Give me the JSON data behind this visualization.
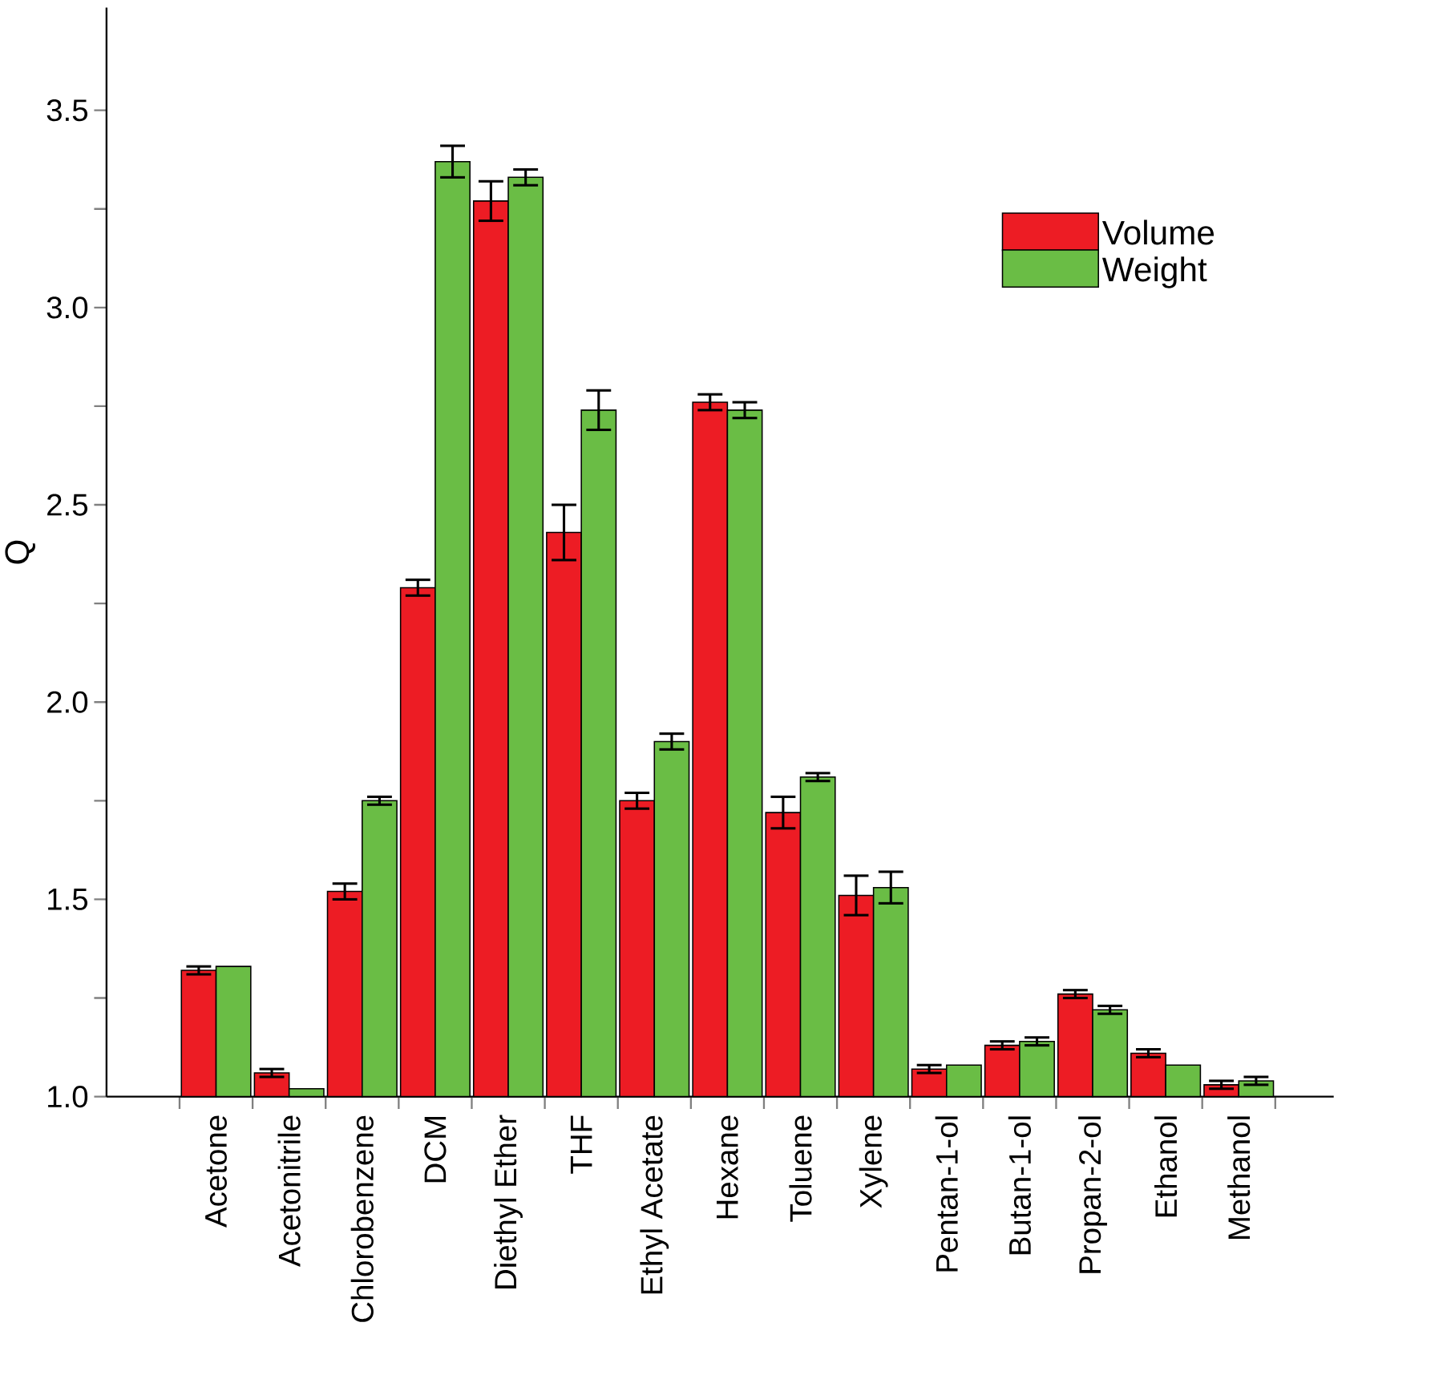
{
  "chart_data": {
    "type": "bar",
    "ylabel": "Q",
    "categories": [
      "Acetone",
      "Acetonitrile",
      "Chlorobenzene",
      "DCM",
      "Diethyl Ether",
      "THF",
      "Ethyl Acetate",
      "Hexane",
      "Toluene",
      "Xylene",
      "Pentan-1-ol",
      "Butan-1-ol",
      "Propan-2-ol",
      "Ethanol",
      "Methanol"
    ],
    "series": [
      {
        "name": "Volume",
        "color": "#ed1c24",
        "values": [
          1.32,
          1.06,
          1.52,
          2.29,
          3.27,
          2.43,
          1.75,
          2.76,
          1.72,
          1.51,
          1.07,
          1.13,
          1.26,
          1.11,
          1.03
        ],
        "errors": [
          0.01,
          0.01,
          0.02,
          0.02,
          0.05,
          0.07,
          0.02,
          0.02,
          0.04,
          0.05,
          0.01,
          0.01,
          0.01,
          0.01,
          0.01
        ]
      },
      {
        "name": "Weight",
        "color": "#6abd45",
        "values": [
          1.33,
          1.02,
          1.75,
          3.37,
          3.33,
          2.74,
          1.9,
          2.74,
          1.81,
          1.53,
          1.08,
          1.14,
          1.22,
          1.08,
          1.04
        ],
        "errors": [
          null,
          null,
          0.01,
          0.04,
          0.02,
          0.05,
          0.02,
          0.02,
          0.01,
          0.04,
          null,
          0.01,
          0.01,
          null,
          0.01
        ]
      }
    ],
    "ylim": [
      1.0,
      3.76
    ],
    "yticks": [
      {
        "value": 1.0,
        "label": "1.0"
      },
      1.5,
      {
        "value": 2.0,
        "label": "2.0"
      },
      2.5,
      {
        "value": 3.0,
        "label": "3.0"
      },
      3.5
    ],
    "grid": false,
    "legend": "top right"
  }
}
